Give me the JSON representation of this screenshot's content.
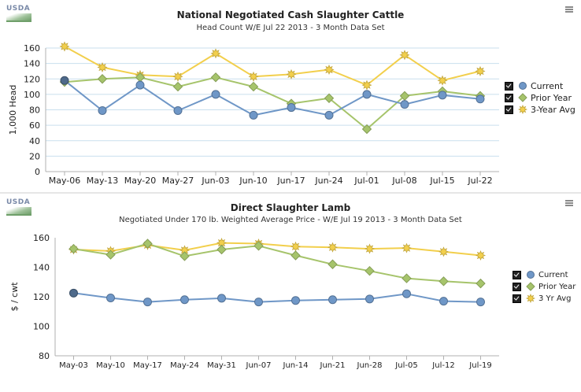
{
  "charts": [
    {
      "logo": "USDA",
      "menu_icon": "menu-icon",
      "title": "National Negotiated Cash Slaughter Cattle",
      "subtitle": "Head Count W/E Jul 22 2013 - 3 Month Data Set",
      "legend": [
        {
          "label": "Current",
          "color": "#6f97c7",
          "marker": "circle",
          "checked": true
        },
        {
          "label": "Prior Year",
          "color": "#a6c46b",
          "marker": "diamond",
          "checked": true
        },
        {
          "label": "3-Year Avg",
          "color": "#f2cf4c",
          "marker": "star",
          "checked": true
        }
      ]
    },
    {
      "logo": "USDA",
      "menu_icon": "menu-icon",
      "title": "Direct Slaughter Lamb",
      "subtitle": "Negotiated Under 170 lb. Weighted Average Price - W/E Jul 19 2013 - 3 Month Data Set",
      "legend": [
        {
          "label": "Current",
          "color": "#6f97c7",
          "marker": "circle",
          "checked": true
        },
        {
          "label": "Prior Year",
          "color": "#a6c46b",
          "marker": "diamond",
          "checked": true
        },
        {
          "label": "3 Yr Avg",
          "color": "#f2cf4c",
          "marker": "star",
          "checked": true
        }
      ]
    }
  ],
  "chart_data": [
    {
      "type": "line",
      "title": "National Negotiated Cash Slaughter Cattle",
      "subtitle": "Head Count W/E Jul 22 2013 - 3 Month Data Set",
      "xlabel": "",
      "ylabel": "1,000 Head",
      "ylim": [
        0,
        160
      ],
      "yticks": [
        0,
        20,
        40,
        60,
        80,
        100,
        120,
        140,
        160
      ],
      "grid": true,
      "legend_position": "right",
      "categories": [
        "May-06",
        "May-13",
        "May-20",
        "May-27",
        "Jun-03",
        "Jun-10",
        "Jun-17",
        "Jun-24",
        "Jul-01",
        "Jul-08",
        "Jul-15",
        "Jul-22"
      ],
      "series": [
        {
          "name": "Current",
          "color": "#6f97c7",
          "marker": "circle",
          "values": [
            118,
            79,
            112,
            79,
            100,
            73,
            83,
            73,
            100,
            87,
            99,
            94
          ]
        },
        {
          "name": "Prior Year",
          "color": "#a6c46b",
          "marker": "diamond",
          "values": [
            116,
            120,
            122,
            110,
            122,
            110,
            88,
            95,
            55,
            98,
            104,
            98
          ]
        },
        {
          "name": "3-Year Avg",
          "color": "#f2cf4c",
          "marker": "star",
          "values": [
            162,
            135,
            125,
            123,
            153,
            123,
            126,
            132,
            112,
            151,
            118,
            130
          ]
        }
      ]
    },
    {
      "type": "line",
      "title": "Direct Slaughter Lamb",
      "subtitle": "Negotiated Under 170 lb. Weighted Average Price - W/E Jul 19 2013 - 3 Month Data Set",
      "xlabel": "",
      "ylabel": "$ / cwt",
      "ylim": [
        80,
        160
      ],
      "yticks": [
        80,
        100,
        120,
        140,
        160
      ],
      "grid": false,
      "legend_position": "right",
      "categories": [
        "May-03",
        "May-10",
        "May-17",
        "May-24",
        "May-31",
        "Jun-07",
        "Jun-14",
        "Jun-21",
        "Jun-28",
        "Jul-05",
        "Jul-12",
        "Jul-19"
      ],
      "series": [
        {
          "name": "Current",
          "color": "#6f97c7",
          "marker": "circle",
          "values": [
            122.5,
            119.2,
            116.5,
            118.0,
            119.0,
            116.5,
            117.5,
            118.0,
            118.5,
            122.0,
            117.0,
            116.5
          ]
        },
        {
          "name": "Prior Year",
          "color": "#a6c46b",
          "marker": "diamond",
          "values": [
            152.5,
            148.5,
            156.0,
            147.5,
            152.0,
            154.5,
            148.0,
            142.0,
            137.5,
            132.5,
            130.5,
            129.0
          ]
        },
        {
          "name": "3 Yr Avg",
          "color": "#f2cf4c",
          "marker": "star",
          "values": [
            152.0,
            151.0,
            155.0,
            151.5,
            156.5,
            156.0,
            154.0,
            153.5,
            152.5,
            153.0,
            150.5,
            148.0
          ]
        }
      ]
    }
  ]
}
